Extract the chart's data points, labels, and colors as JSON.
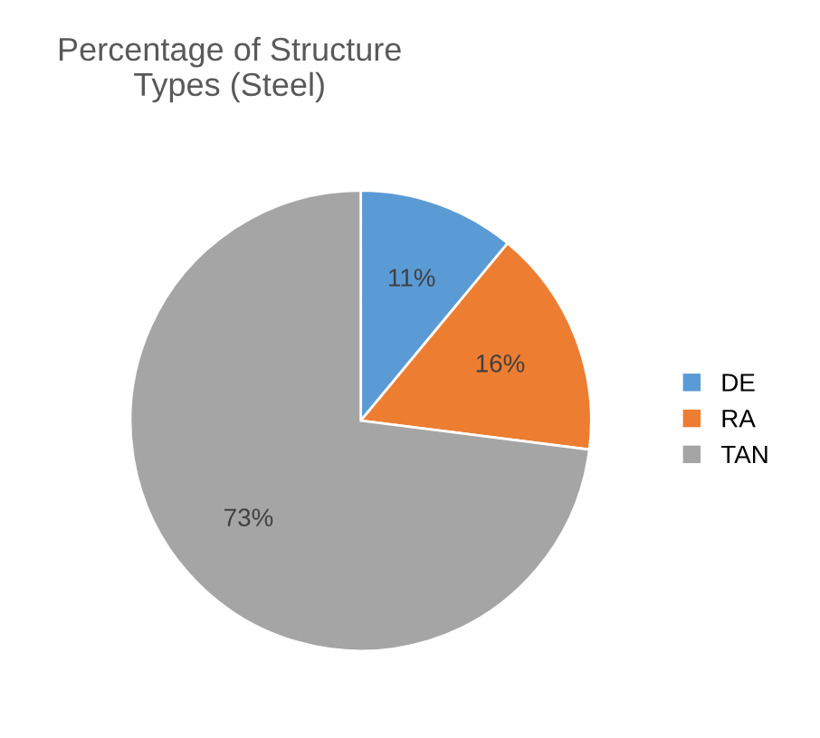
{
  "chart_data": {
    "type": "pie",
    "title": "Percentage of Structure\nTypes (Steel)",
    "categories": [
      "DE",
      "RA",
      "TAN"
    ],
    "values": [
      11,
      16,
      73
    ],
    "value_labels": [
      "11%",
      "16%",
      "73%"
    ],
    "colors": [
      "#5b9bd5",
      "#ed7d31",
      "#a5a5a5"
    ],
    "legend": "right"
  }
}
